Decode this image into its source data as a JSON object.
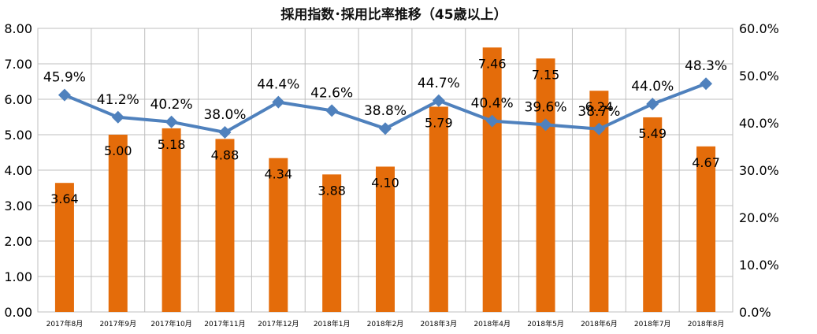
{
  "chart_data": {
    "type": "bar",
    "title": "採用指数･採用比率推移（45歳以上）",
    "categories": [
      "2017年8月",
      "2017年9月",
      "2017年10月",
      "2017年11月",
      "2017年12月",
      "2018年1月",
      "2018年2月",
      "2018年3月",
      "2018年4月",
      "2018年5月",
      "2018年6月",
      "2018年7月",
      "2018年8月"
    ],
    "series": [
      {
        "type": "bar",
        "axis": "left",
        "color": "#E46C0A",
        "values": [
          3.64,
          5.0,
          5.18,
          4.88,
          4.34,
          3.88,
          4.1,
          5.79,
          7.46,
          7.15,
          6.24,
          5.49,
          4.67
        ],
        "labels": [
          "3.64",
          "5.00",
          "5.18",
          "4.88",
          "4.34",
          "3.88",
          "4.10",
          "5.79",
          "7.46",
          "7.15",
          "6.24",
          "5.49",
          "4.67"
        ]
      },
      {
        "type": "line",
        "axis": "right",
        "color": "#4F81BD",
        "marker": "diamond",
        "values": [
          45.9,
          41.2,
          40.2,
          38.0,
          44.4,
          42.6,
          38.8,
          44.7,
          40.4,
          39.6,
          38.7,
          44.0,
          48.3
        ],
        "labels": [
          "45.9%",
          "41.2%",
          "40.2%",
          "38.0%",
          "44.4%",
          "42.6%",
          "38.8%",
          "44.7%",
          "40.4%",
          "39.6%",
          "38.7%",
          "44.0%",
          "48.3%"
        ]
      }
    ],
    "y_left": {
      "min": 0,
      "max": 8,
      "step": 1,
      "ticks": [
        "0.00",
        "1.00",
        "2.00",
        "3.00",
        "4.00",
        "5.00",
        "6.00",
        "7.00",
        "8.00"
      ]
    },
    "y_right": {
      "min": 0,
      "max": 60,
      "step": 10,
      "ticks": [
        "0.0%",
        "10.0%",
        "20.0%",
        "30.0%",
        "40.0%",
        "50.0%",
        "60.0%"
      ]
    },
    "grid": true
  }
}
